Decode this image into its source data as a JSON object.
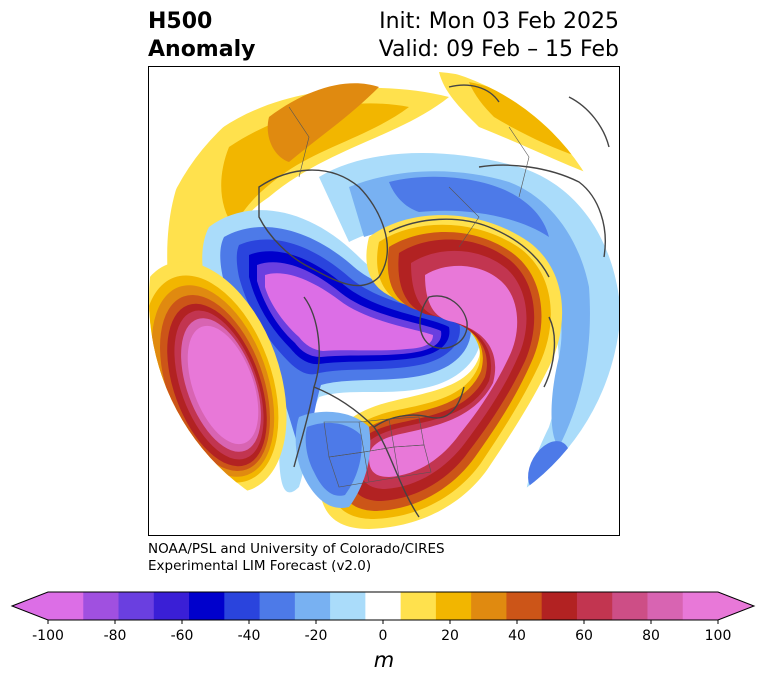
{
  "title": {
    "variable": "H500",
    "field": "Anomaly",
    "init": "Init: Mon 03 Feb 2025",
    "valid": "Valid: 09 Feb – 15 Feb"
  },
  "credit": {
    "line1": "NOAA/PSL and University of Colorado/CIRES",
    "line2": "Experimental LIM Forecast (v2.0)"
  },
  "colorbar": {
    "unit": "m",
    "ticks": [
      "-100",
      "-80",
      "-60",
      "-40",
      "-20",
      "0",
      "20",
      "40",
      "60",
      "80",
      "100"
    ],
    "levels": [
      -100,
      -90,
      -80,
      -70,
      -60,
      -50,
      -40,
      -30,
      -20,
      -10,
      10,
      20,
      30,
      40,
      50,
      60,
      70,
      80,
      90,
      100
    ],
    "colors": [
      "#dc6ee6",
      "#a050e0",
      "#6a3fe0",
      "#3a1fd6",
      "#0000cc",
      "#2a44dd",
      "#4d7ae8",
      "#78b1f2",
      "#aadcfa",
      "#ffffff",
      "#ffe14d",
      "#f2b600",
      "#e08a10",
      "#cc5518",
      "#b22222",
      "#c23550",
      "#cd4e86",
      "#d864b2",
      "#e878d8"
    ],
    "under_color": "#dc6ee6",
    "over_color": "#e878d8"
  },
  "map": {
    "projection": "polar-stereographic",
    "region": "North America / Northern Hemisphere"
  }
}
